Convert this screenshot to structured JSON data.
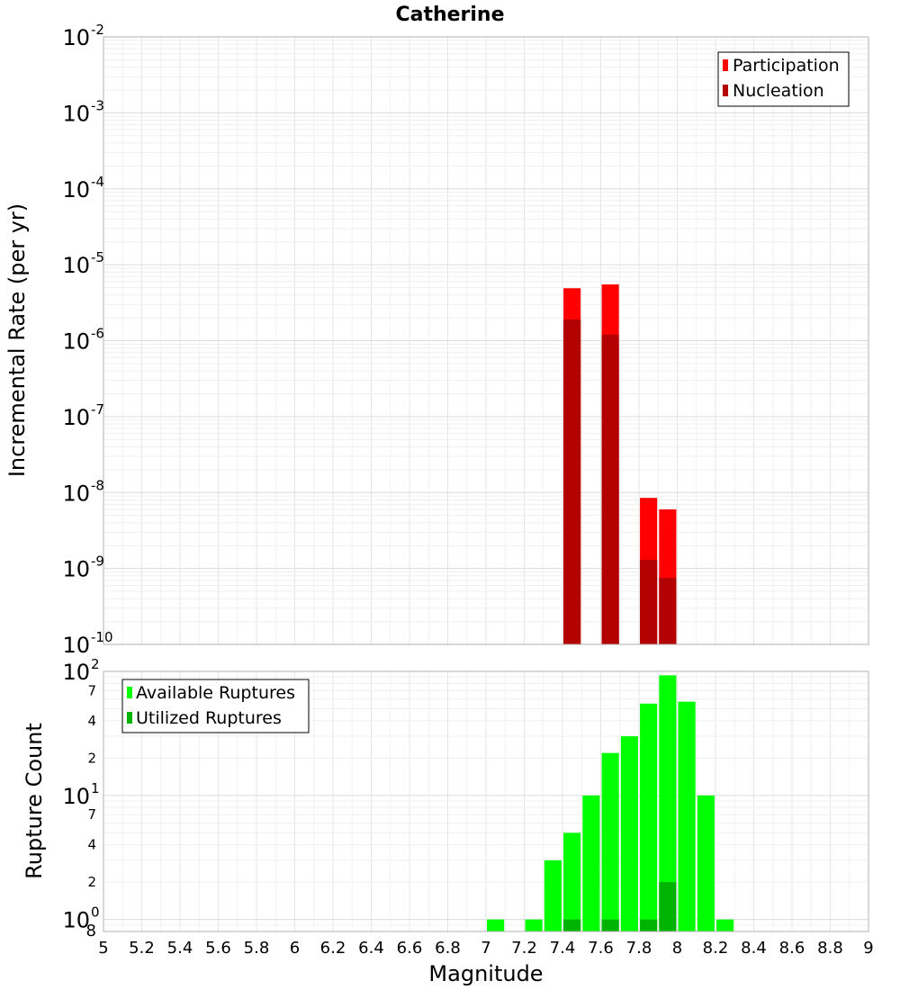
{
  "chart_data": [
    {
      "type": "bar",
      "title": "Catherine",
      "xlabel": "Magnitude",
      "ylabel": "Incremental Rate (per yr)",
      "yscale": "log",
      "xlim": [
        5,
        9
      ],
      "ylim": [
        1e-10,
        0.01
      ],
      "y_major_ticks": [
        {
          "base": "10",
          "exp": "-10"
        },
        {
          "base": "10",
          "exp": "-9"
        },
        {
          "base": "10",
          "exp": "-8"
        },
        {
          "base": "10",
          "exp": "-7"
        },
        {
          "base": "10",
          "exp": "-6"
        },
        {
          "base": "10",
          "exp": "-5"
        },
        {
          "base": "10",
          "exp": "-4"
        },
        {
          "base": "10",
          "exp": "-3"
        },
        {
          "base": "10",
          "exp": "-2"
        }
      ],
      "legend_position": "top-right",
      "grid": true,
      "series": [
        {
          "name": "Participation",
          "color": "#ff0000",
          "x": [
            7.45,
            7.65,
            7.85,
            7.95
          ],
          "values": [
            4.9e-06,
            5.5e-06,
            8.5e-09,
            6e-09
          ]
        },
        {
          "name": "Nucleation",
          "color": "#b30000",
          "x": [
            7.45,
            7.65,
            7.85,
            7.95
          ],
          "values": [
            1.9e-06,
            1.2e-06,
            1.3e-09,
            7.5e-10
          ]
        }
      ]
    },
    {
      "type": "bar",
      "xlabel": "Magnitude",
      "ylabel": "Rupture Count",
      "yscale": "log",
      "xlim": [
        5,
        9
      ],
      "ylim": [
        0.8,
        100
      ],
      "x_ticks": [
        "5",
        "5.2",
        "5.4",
        "5.6",
        "5.8",
        "6",
        "6.2",
        "6.4",
        "6.6",
        "6.8",
        "7",
        "7.2",
        "7.4",
        "7.6",
        "7.8",
        "8",
        "8.2",
        "8.4",
        "8.6",
        "8.8",
        "9"
      ],
      "y_major_ticks": [
        {
          "base": "10",
          "exp": "0"
        },
        {
          "base": "10",
          "exp": "1"
        },
        {
          "base": "10",
          "exp": "2"
        }
      ],
      "y_minor_ticks": [
        "8",
        "2",
        "4",
        "7",
        "2",
        "4",
        "7"
      ],
      "legend_position": "top-left",
      "grid": true,
      "series": [
        {
          "name": "Available Ruptures",
          "color": "#00ff00",
          "x": [
            7.05,
            7.25,
            7.35,
            7.45,
            7.55,
            7.65,
            7.75,
            7.85,
            7.95,
            8.05,
            8.15,
            8.25
          ],
          "values": [
            1,
            1,
            3,
            5,
            10,
            22,
            30,
            55,
            93,
            57,
            10,
            1
          ]
        },
        {
          "name": "Utilized Ruptures",
          "color": "#00b300",
          "x": [
            7.45,
            7.65,
            7.85,
            7.95
          ],
          "values": [
            1,
            1,
            1,
            2
          ]
        }
      ]
    }
  ]
}
